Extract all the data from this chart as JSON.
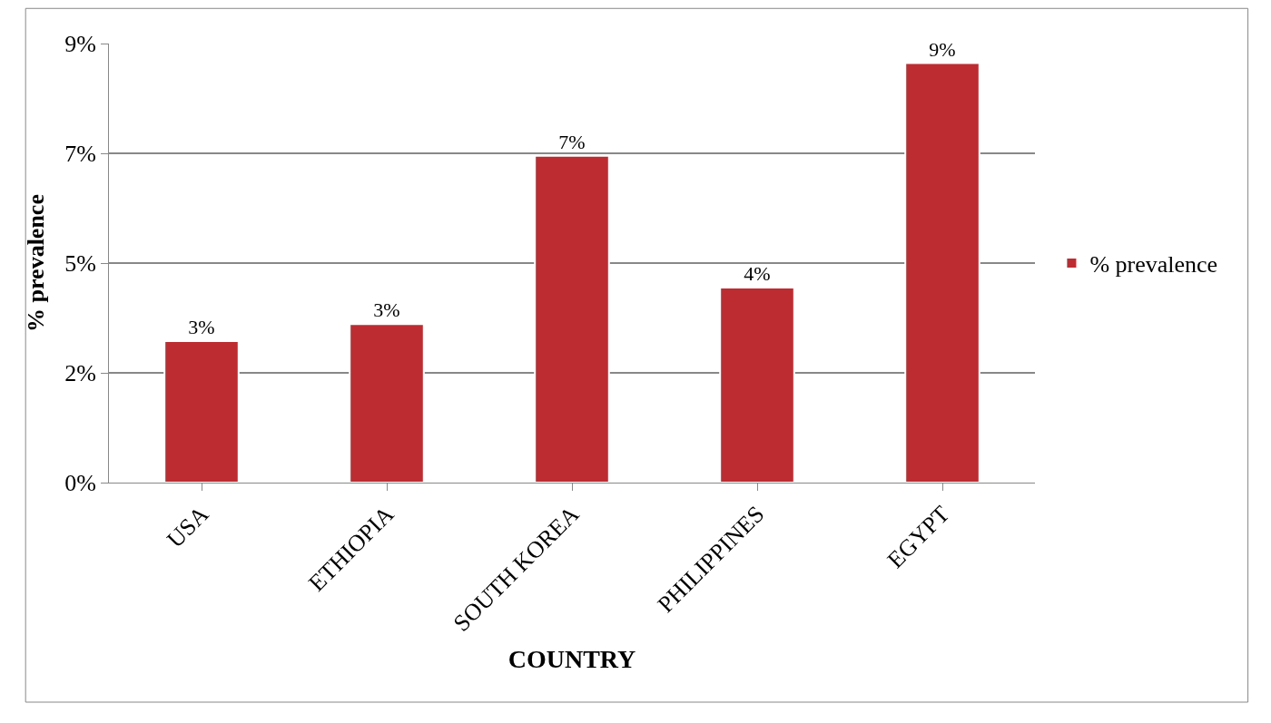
{
  "chart_data": {
    "type": "bar",
    "xlabel": "COUNTRY",
    "ylabel": "% prevalence",
    "categories": [
      "USA",
      "ETHIOPIA",
      "SOUTH KOREA",
      "PHILIPPINES",
      "EGYPT"
    ],
    "series": [
      {
        "name": "% prevalence",
        "color": "#bc2c31",
        "values": [
          2.9,
          3.25,
          6.7,
          4.0,
          8.6
        ],
        "value_labels": [
          "3%",
          "3%",
          "7%",
          "4%",
          "9%"
        ]
      }
    ],
    "ylim": [
      0,
      9
    ],
    "yticks": [
      {
        "value": 0,
        "label": "0%"
      },
      {
        "value": 2.25,
        "label": "2%"
      },
      {
        "value": 4.5,
        "label": "5%"
      },
      {
        "value": 6.75,
        "label": "7%"
      },
      {
        "value": 9,
        "label": "9%"
      }
    ],
    "grid": "y",
    "legend": "right"
  }
}
